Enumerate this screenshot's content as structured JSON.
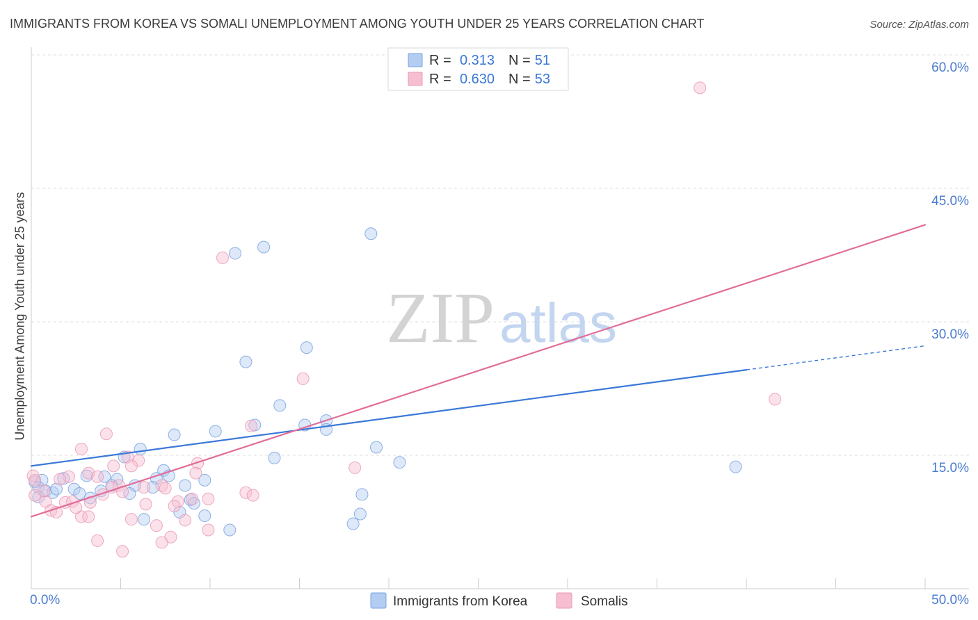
{
  "watermark": {
    "zip": "ZIP",
    "atlas": "atlas"
  },
  "chart_data": {
    "type": "scatter",
    "title": "IMMIGRANTS FROM KOREA VS SOMALI UNEMPLOYMENT AMONG YOUTH UNDER 25 YEARS CORRELATION CHART",
    "source": "Source: ZipAtlas.com",
    "ylabel": "Unemployment Among Youth under 25 years",
    "xlim": [
      0,
      50
    ],
    "ylim": [
      0,
      60
    ],
    "grid": true,
    "x_ticks": [
      0,
      5,
      10,
      15,
      20,
      25,
      30,
      35,
      40,
      45,
      50
    ],
    "x_tick_labels": [
      "0.0%",
      "50.0%"
    ],
    "y_ticks": [
      {
        "value": 60,
        "label": "60.0%"
      },
      {
        "value": 45,
        "label": "45.0%"
      },
      {
        "value": 30,
        "label": "30.0%"
      },
      {
        "value": 15,
        "label": "15.0%"
      }
    ],
    "legend_labels": {
      "r": "R =",
      "n": "N ="
    },
    "series": [
      {
        "name": "Immigrants from Korea",
        "r": "0.313",
        "n": "51",
        "color": "#3a78d8",
        "fill": "#b3cdf2",
        "point_stroke": "#7aa3e0",
        "trend": {
          "x0": 0,
          "y0": 13.8,
          "x1": 50,
          "y1": 27.3,
          "solid_to": 40
        },
        "points": [
          [
            19.0,
            39.9
          ],
          [
            11.4,
            37.7
          ],
          [
            13.0,
            38.4
          ],
          [
            15.4,
            27.1
          ],
          [
            12.0,
            25.5
          ],
          [
            13.9,
            20.6
          ],
          [
            16.5,
            18.9
          ],
          [
            15.3,
            18.4
          ],
          [
            16.5,
            17.9
          ],
          [
            12.5,
            18.4
          ],
          [
            10.3,
            17.7
          ],
          [
            8.0,
            17.3
          ],
          [
            19.3,
            15.9
          ],
          [
            6.1,
            15.7
          ],
          [
            5.2,
            14.8
          ],
          [
            13.6,
            14.7
          ],
          [
            20.6,
            14.2
          ],
          [
            39.4,
            13.7
          ],
          [
            7.4,
            13.3
          ],
          [
            7.7,
            12.7
          ],
          [
            9.7,
            12.2
          ],
          [
            7.0,
            12.4
          ],
          [
            8.6,
            11.6
          ],
          [
            5.8,
            11.6
          ],
          [
            6.8,
            11.4
          ],
          [
            4.8,
            12.3
          ],
          [
            4.1,
            12.6
          ],
          [
            3.1,
            12.7
          ],
          [
            1.8,
            12.4
          ],
          [
            0.6,
            12.2
          ],
          [
            0.2,
            12.0
          ],
          [
            0.4,
            11.4
          ],
          [
            0.8,
            11.0
          ],
          [
            1.2,
            10.8
          ],
          [
            1.4,
            11.2
          ],
          [
            2.4,
            11.2
          ],
          [
            2.7,
            10.7
          ],
          [
            3.3,
            10.2
          ],
          [
            3.9,
            11.0
          ],
          [
            4.5,
            11.6
          ],
          [
            5.5,
            10.7
          ],
          [
            8.9,
            10.0
          ],
          [
            9.1,
            9.6
          ],
          [
            8.3,
            8.6
          ],
          [
            6.3,
            7.8
          ],
          [
            9.7,
            8.2
          ],
          [
            11.1,
            6.6
          ],
          [
            18.5,
            10.6
          ],
          [
            18.4,
            8.4
          ],
          [
            18.0,
            7.3
          ],
          [
            0.4,
            10.3
          ]
        ]
      },
      {
        "name": "Somalis",
        "r": "0.630",
        "n": "53",
        "color": "#e26d99",
        "fill": "#f6bfd1",
        "point_stroke": "#eb9ab6",
        "trend": {
          "x0": 0,
          "y0": 8.1,
          "x1": 50,
          "y1": 40.9
        },
        "points": [
          [
            37.4,
            56.3
          ],
          [
            10.7,
            37.2
          ],
          [
            15.2,
            23.6
          ],
          [
            41.6,
            21.3
          ],
          [
            12.3,
            18.3
          ],
          [
            4.2,
            17.4
          ],
          [
            2.8,
            15.7
          ],
          [
            5.4,
            14.8
          ],
          [
            6.0,
            14.4
          ],
          [
            9.3,
            14.1
          ],
          [
            18.1,
            13.6
          ],
          [
            4.6,
            13.8
          ],
          [
            5.6,
            13.8
          ],
          [
            9.2,
            13.0
          ],
          [
            3.2,
            13.0
          ],
          [
            2.1,
            12.6
          ],
          [
            1.6,
            12.3
          ],
          [
            3.7,
            12.6
          ],
          [
            0.1,
            12.7
          ],
          [
            0.2,
            12.2
          ],
          [
            4.9,
            11.6
          ],
          [
            4.5,
            11.4
          ],
          [
            7.3,
            11.6
          ],
          [
            7.5,
            11.3
          ],
          [
            4.0,
            10.6
          ],
          [
            0.2,
            10.5
          ],
          [
            5.1,
            10.9
          ],
          [
            12.0,
            10.8
          ],
          [
            12.4,
            10.5
          ],
          [
            9.9,
            10.1
          ],
          [
            9.0,
            10.1
          ],
          [
            8.2,
            9.8
          ],
          [
            0.8,
            9.8
          ],
          [
            1.9,
            9.7
          ],
          [
            2.3,
            9.8
          ],
          [
            3.3,
            9.7
          ],
          [
            6.4,
            9.5
          ],
          [
            8.0,
            9.3
          ],
          [
            1.1,
            8.8
          ],
          [
            1.4,
            8.6
          ],
          [
            2.8,
            8.1
          ],
          [
            3.2,
            8.1
          ],
          [
            5.6,
            7.8
          ],
          [
            8.6,
            7.7
          ],
          [
            7.0,
            7.1
          ],
          [
            9.9,
            6.6
          ],
          [
            7.8,
            5.8
          ],
          [
            7.3,
            5.2
          ],
          [
            3.7,
            5.4
          ],
          [
            5.1,
            4.2
          ],
          [
            0.7,
            11.0
          ],
          [
            6.3,
            11.4
          ],
          [
            2.5,
            9.1
          ]
        ]
      }
    ]
  }
}
